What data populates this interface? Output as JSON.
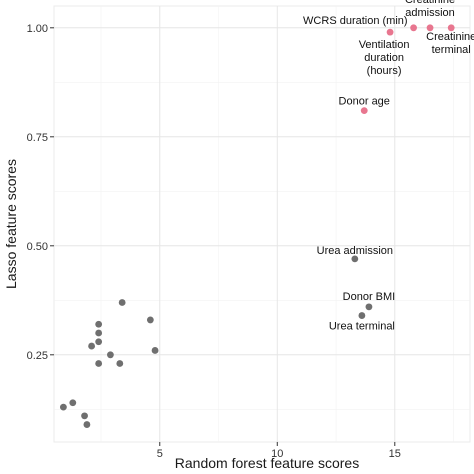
{
  "chart_data": {
    "type": "scatter",
    "title": "",
    "xlabel": "Random forest feature scores",
    "ylabel": "Lasso feature scores",
    "xlim": [
      0.5,
      18.2
    ],
    "ylim": [
      0.05,
      1.05
    ],
    "x_ticks": [
      5,
      10,
      15
    ],
    "x_tick_labels": [
      "5",
      "10",
      "15"
    ],
    "y_ticks": [
      0.25,
      0.5,
      0.75,
      1.0
    ],
    "y_tick_labels": [
      "0.25",
      "0.50",
      "0.75",
      "1.00"
    ],
    "grid": true,
    "background": "#ffffff",
    "grid_color": "#e6e6e6",
    "highlight_color": "#e8768f",
    "default_color": "#6f6f6f",
    "points": [
      {
        "x": 17.4,
        "y": 1.0,
        "label": "Creatinine\nterminal",
        "highlight": true
      },
      {
        "x": 16.5,
        "y": 1.0,
        "label": "Creatinine\nadmission",
        "highlight": true
      },
      {
        "x": 15.8,
        "y": 1.0,
        "label": "WCRS duration (min)",
        "highlight": true
      },
      {
        "x": 14.8,
        "y": 0.99,
        "label": "Ventilation\nduration\n(hours)",
        "highlight": true
      },
      {
        "x": 13.7,
        "y": 0.81,
        "label": "Donor age",
        "highlight": true
      },
      {
        "x": 13.3,
        "y": 0.47,
        "label": "Urea admission",
        "highlight": false
      },
      {
        "x": 13.9,
        "y": 0.36,
        "label": "Donor BMI",
        "highlight": false
      },
      {
        "x": 13.6,
        "y": 0.34,
        "label": "Urea terminal",
        "highlight": false
      },
      {
        "x": 3.4,
        "y": 0.37,
        "label": "",
        "highlight": false
      },
      {
        "x": 4.6,
        "y": 0.33,
        "label": "",
        "highlight": false
      },
      {
        "x": 2.4,
        "y": 0.32,
        "label": "",
        "highlight": false
      },
      {
        "x": 2.4,
        "y": 0.3,
        "label": "",
        "highlight": false
      },
      {
        "x": 2.4,
        "y": 0.28,
        "label": "",
        "highlight": false
      },
      {
        "x": 2.1,
        "y": 0.27,
        "label": "",
        "highlight": false
      },
      {
        "x": 4.8,
        "y": 0.26,
        "label": "",
        "highlight": false
      },
      {
        "x": 2.9,
        "y": 0.25,
        "label": "",
        "highlight": false
      },
      {
        "x": 2.4,
        "y": 0.23,
        "label": "",
        "highlight": false
      },
      {
        "x": 3.3,
        "y": 0.23,
        "label": "",
        "highlight": false
      },
      {
        "x": 1.3,
        "y": 0.14,
        "label": "",
        "highlight": false
      },
      {
        "x": 0.9,
        "y": 0.13,
        "label": "",
        "highlight": false
      },
      {
        "x": 1.8,
        "y": 0.11,
        "label": "",
        "highlight": false
      },
      {
        "x": 1.9,
        "y": 0.09,
        "label": "",
        "highlight": false
      }
    ]
  }
}
